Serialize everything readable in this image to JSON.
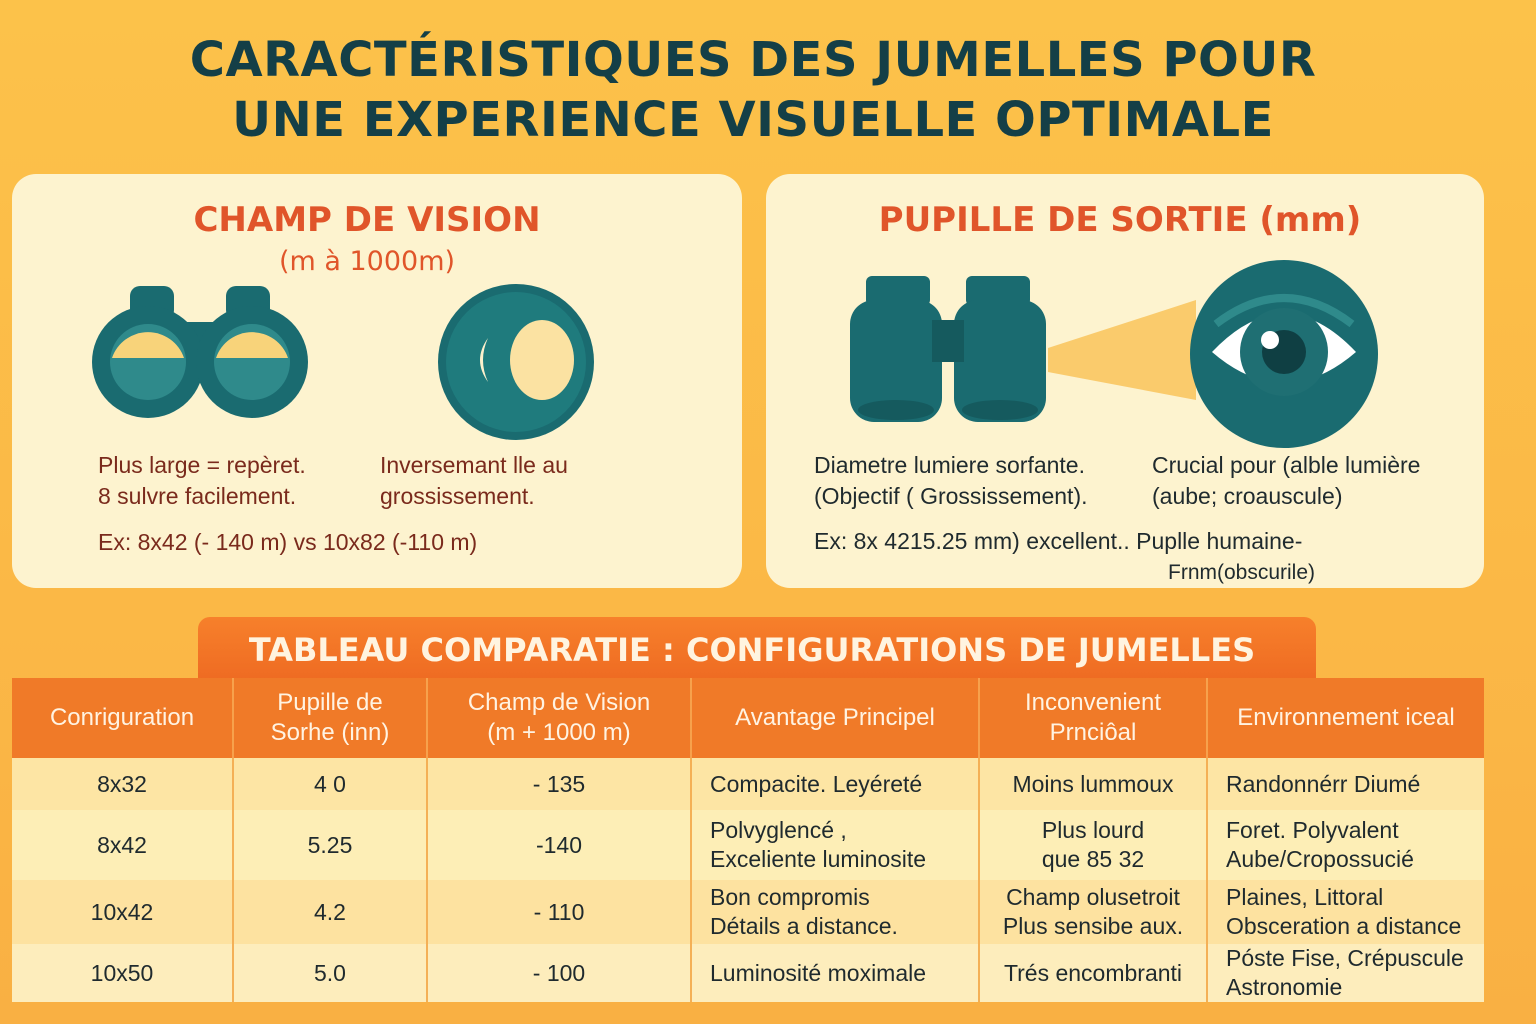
{
  "title": {
    "line1": "CARACTÉRISTIQUES DES JUMELLES POUR",
    "line2": "UNE EXPERIENCE VISUELLE OPTIMALE"
  },
  "field_of_view_panel": {
    "heading": "CHAMP DE VISION",
    "subheading": "(m à 1000m)",
    "text_left_line1": "Plus large = repèret.",
    "text_left_line2": "8 sulvre facilement.",
    "text_right_line1": "Inversemant lle au",
    "text_right_line2": "grossissement.",
    "example": "Ex: 8x42 (- 140 m) vs 10x82 (-110 m)"
  },
  "exit_pupil_panel": {
    "heading": "PUPILLE DE SORTIE (mm)",
    "text_left_line1": "Diametre lumiere sorfante.",
    "text_left_line2": "(Objectif ( Grossissement).",
    "text_right_line1": "Crucial pour (alble lumière",
    "text_right_line2": "(aube; croauscule)",
    "example_line1": "Ex: 8x 4215.25 mm) excellent.. Puplle humaine-",
    "example_line2": "Frnm(obscurile)"
  },
  "table": {
    "banner": "TABLEAU COMPARATIE : CONFIGURATIONS DE JUMELLES",
    "headers": [
      [
        "Conriguration"
      ],
      [
        "Pupille de",
        "Sorhe (inn)"
      ],
      [
        "Champ de Vision",
        "(m + 1000 m)"
      ],
      [
        "Avantage Principel"
      ],
      [
        "Inconvenient",
        "Prnciôal"
      ],
      [
        "Environnement iceal"
      ]
    ],
    "rows": [
      [
        [
          "8x32"
        ],
        [
          "4 0"
        ],
        [
          "- 135"
        ],
        [
          "Compacite. Leyéreté"
        ],
        [
          "Moins lummoux"
        ],
        [
          "Randonnérr Diumé"
        ]
      ],
      [
        [
          "8x42"
        ],
        [
          "5.25"
        ],
        [
          "-140"
        ],
        [
          "Polvyglencé ,",
          "Exceliente luminosite"
        ],
        [
          "Plus lourd",
          "que 85 32"
        ],
        [
          "Foret. Polyvalent",
          "Aube/Cropossucié"
        ]
      ],
      [
        [
          "10x42"
        ],
        [
          "4.2"
        ],
        [
          "- 110"
        ],
        [
          "Bon compromis",
          "Détails a distance."
        ],
        [
          "Champ olusetroit",
          "Plus sensibe aux."
        ],
        [
          "Plaines, Littoral",
          "Obsceration a distance"
        ]
      ],
      [
        [
          "10x50"
        ],
        [
          "5.0"
        ],
        [
          "- 100"
        ],
        [
          "Luminosité moximale"
        ],
        [
          "Trés encombranti"
        ],
        [
          "Póste Fise, Crépuscule",
          "Astronomie"
        ]
      ]
    ]
  },
  "colors": {
    "background": "#fcc24a",
    "title": "#143f47",
    "panel": "#fdf3cf",
    "accent": "#e0552a",
    "teal": "#1a6b70",
    "table_header": "#f07a28"
  },
  "icons": [
    "binoculars-front-icon",
    "lens-circle-icon",
    "binoculars-icon",
    "eye-icon"
  ]
}
